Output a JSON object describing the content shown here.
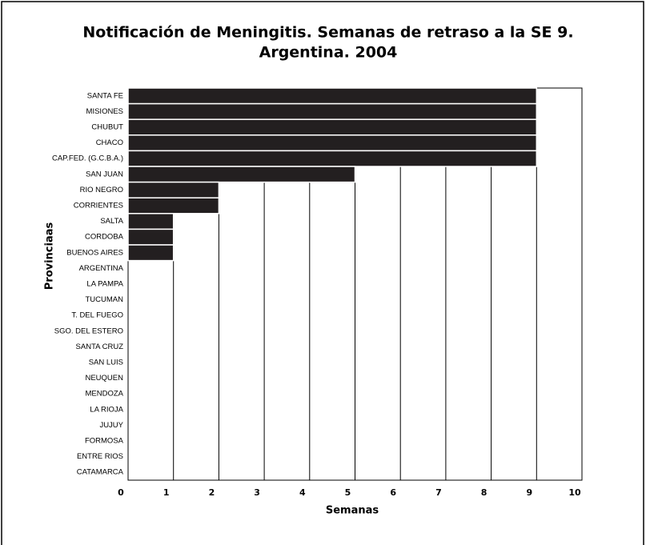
{
  "chart_data": {
    "type": "bar",
    "orientation": "horizontal",
    "title": [
      "Notificación de Meningitis. Semanas de retraso  a la SE 9.",
      "Argentina. 2004"
    ],
    "x_label": "Semanas",
    "y_label": "Provinciaas",
    "categories": [
      "SANTA FE",
      "MISIONES",
      "CHUBUT",
      "CHACO",
      "CAP.FED. (G.C.B.A.)",
      "SAN JUAN",
      "RIO NEGRO",
      "CORRIENTES",
      "SALTA",
      "CORDOBA",
      "BUENOS AIRES",
      "ARGENTINA",
      "LA PAMPA",
      "TUCUMAN",
      "T. DEL FUEGO",
      "SGO. DEL ESTERO",
      "SANTA CRUZ",
      "SAN LUIS",
      "NEUQUEN",
      "MENDOZA",
      "LA RIOJA",
      "JUJUY",
      "FORMOSA",
      "ENTRE RIOS",
      "CATAMARCA"
    ],
    "values": [
      9,
      9,
      9,
      9,
      9,
      5,
      2,
      2,
      1,
      1,
      1,
      0,
      0,
      0,
      0,
      0,
      0,
      0,
      0,
      0,
      0,
      0,
      0,
      0,
      0
    ],
    "color": "#231f20",
    "xlim": [
      0,
      10
    ],
    "xticks": [
      0,
      1,
      2,
      3,
      4,
      5,
      6,
      7,
      8,
      9,
      10
    ],
    "grid": true
  }
}
